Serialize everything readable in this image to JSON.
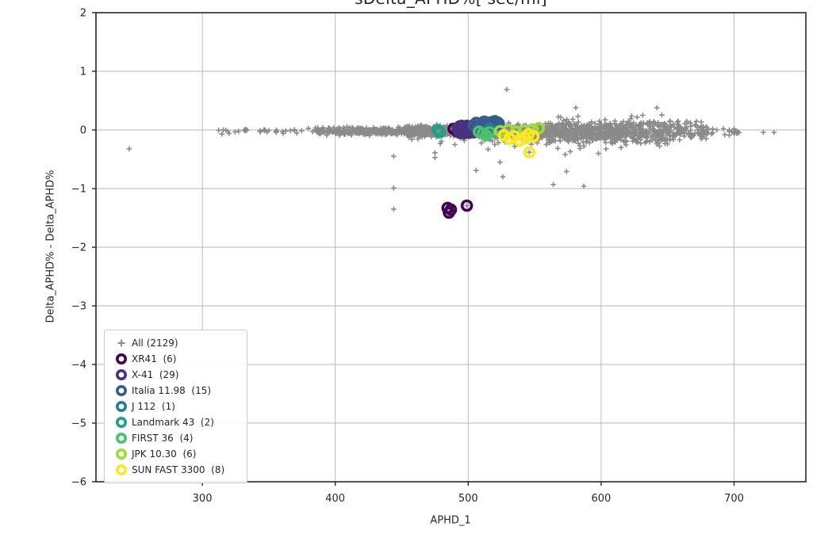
{
  "chart": {
    "title_clipped": "sDelta_APHD%[ sec/mi]",
    "xlabel": "APHD_1",
    "ylabel": "Delta_APHD% - Delta_APHD%"
  },
  "colors": {
    "frame": "#262626",
    "grid": "#b4b4b4",
    "tick_text": "#262626",
    "all_points": "#8a8a8a",
    "legend_border": "#cccccc"
  },
  "chart_data": {
    "type": "scatter",
    "title": "sDelta_APHD%[ sec/mi]",
    "xlabel": "APHD_1",
    "ylabel": "Delta_APHD% - Delta_APHD%",
    "xlim": [
      220,
      754
    ],
    "ylim": [
      -6,
      2
    ],
    "x_ticks": [
      300,
      400,
      500,
      600,
      700
    ],
    "x_tick_labels": [
      "300",
      "400",
      "500",
      "600",
      "700"
    ],
    "y_ticks": [
      2,
      1,
      0,
      -1,
      -2,
      -3,
      -4,
      -5,
      -6
    ],
    "y_tick_labels": [
      "2",
      "1",
      "0",
      "−1",
      "−2",
      "−3",
      "−4",
      "−5",
      "−6"
    ],
    "grid": true,
    "legend_position": "lower-left",
    "all_series": {
      "label": "All (2129)",
      "name": "All",
      "count": 2129,
      "marker": "plus",
      "color": "#8a8a8a",
      "band_mean_y": -0.02,
      "band_clusters": [
        {
          "x0": 312,
          "x1": 385,
          "n": 35,
          "sd": 0.022,
          "tail_frac": 0,
          "tail_sd": 0
        },
        {
          "x0": 385,
          "x1": 450,
          "n": 260,
          "sd": 0.03,
          "tail_frac": 0.02,
          "tail_sd": 0.06
        },
        {
          "x0": 450,
          "x1": 510,
          "n": 520,
          "sd": 0.042,
          "tail_frac": 0.03,
          "tail_sd": 0.08
        },
        {
          "x0": 510,
          "x1": 560,
          "n": 520,
          "sd": 0.05,
          "tail_frac": 0.1,
          "tail_sd": 0.09
        },
        {
          "x0": 560,
          "x1": 615,
          "n": 440,
          "sd": 0.085,
          "tail_frac": 0.12,
          "tail_sd": 0.12
        },
        {
          "x0": 615,
          "x1": 650,
          "n": 200,
          "sd": 0.095,
          "tail_frac": 0.08,
          "tail_sd": 0.1
        },
        {
          "x0": 650,
          "x1": 680,
          "n": 105,
          "sd": 0.085,
          "tail_frac": 0.04,
          "tail_sd": 0.08
        },
        {
          "x0": 680,
          "x1": 706,
          "n": 17,
          "sd": 0.04,
          "tail_frac": 0,
          "tail_sd": 0
        }
      ],
      "outliers": [
        [
          245,
          -0.32
        ],
        [
          444,
          -0.45
        ],
        [
          444,
          -0.99
        ],
        [
          444,
          -1.35
        ],
        [
          475,
          -0.39
        ],
        [
          475,
          -0.47
        ],
        [
          486,
          -1.35
        ],
        [
          490,
          -0.25
        ],
        [
          497,
          -0.18
        ],
        [
          499,
          -1.29
        ],
        [
          506,
          -0.69
        ],
        [
          510,
          -0.22
        ],
        [
          515,
          -0.33
        ],
        [
          520,
          -0.25
        ],
        [
          524,
          -0.55
        ],
        [
          526,
          -0.8
        ],
        [
          529,
          0.69
        ],
        [
          535,
          -0.28
        ],
        [
          546,
          -0.38
        ],
        [
          552,
          -0.22
        ],
        [
          564,
          -0.93
        ],
        [
          573,
          -0.42
        ],
        [
          574,
          -0.71
        ],
        [
          581,
          0.38
        ],
        [
          587,
          -0.96
        ],
        [
          598,
          -0.4
        ],
        [
          615,
          -0.3
        ],
        [
          642,
          0.38
        ],
        [
          687,
          0.0
        ],
        [
          693,
          -0.08
        ],
        [
          700,
          0.02
        ],
        [
          722,
          -0.04
        ],
        [
          730,
          -0.04
        ]
      ]
    },
    "series": [
      {
        "label": "XR41  (6)",
        "name": "XR41",
        "count": 6,
        "color": "#440154",
        "marker": "ring",
        "points": [
          [
            489,
            0.02
          ],
          [
            492,
            -0.03
          ],
          [
            484.5,
            -1.33
          ],
          [
            485.5,
            -1.41
          ],
          [
            487,
            -1.36
          ],
          [
            499,
            -1.29
          ]
        ]
      },
      {
        "label": "X-41  (29)",
        "name": "X-41",
        "count": 29,
        "color": "#46327e",
        "marker": "ring",
        "points": [
          [
            492,
            0.03
          ],
          [
            493,
            -0.02
          ],
          [
            493.5,
            0.06
          ],
          [
            494,
            -0.05
          ],
          [
            494.5,
            0.02
          ],
          [
            495,
            0.07
          ],
          [
            495.5,
            -0.03
          ],
          [
            496,
            0.03
          ],
          [
            496.5,
            -0.06
          ],
          [
            497,
            0.0
          ],
          [
            497.5,
            0.05
          ],
          [
            498,
            -0.04
          ],
          [
            498.5,
            0.02
          ],
          [
            499,
            0.07
          ],
          [
            499.5,
            -0.01
          ],
          [
            500,
            0.04
          ],
          [
            500.5,
            -0.05
          ],
          [
            501,
            0.01
          ],
          [
            501.5,
            0.06
          ],
          [
            502,
            -0.03
          ],
          [
            502.5,
            0.03
          ],
          [
            503,
            -0.01
          ],
          [
            503.5,
            0.05
          ],
          [
            504,
            -0.04
          ],
          [
            504.5,
            0.02
          ],
          [
            505,
            -0.02
          ],
          [
            505.5,
            0.04
          ],
          [
            506.5,
            0.0
          ],
          [
            507.5,
            -0.03
          ]
        ]
      },
      {
        "label": "Italia 11.98  (15)",
        "name": "Italia 11.98",
        "count": 15,
        "color": "#365c8d",
        "marker": "ring",
        "points": [
          [
            504,
            0.08
          ],
          [
            506,
            0.12
          ],
          [
            508,
            0.05
          ],
          [
            510,
            0.1
          ],
          [
            512,
            0.14
          ],
          [
            513,
            0.07
          ],
          [
            515,
            0.11
          ],
          [
            516,
            0.04
          ],
          [
            517,
            0.13
          ],
          [
            518,
            0.08
          ],
          [
            519,
            0.12
          ],
          [
            520,
            0.15
          ],
          [
            521,
            0.09
          ],
          [
            522,
            0.13
          ],
          [
            523,
            0.11
          ]
        ]
      },
      {
        "label": "J 112  (1)",
        "name": "J 112",
        "count": 1,
        "color": "#277f8e",
        "marker": "ring",
        "points": [
          [
            516,
            0.02
          ]
        ]
      },
      {
        "label": "Landmark 43  (2)",
        "name": "Landmark 43",
        "count": 2,
        "color": "#1fa187",
        "marker": "ring",
        "points": [
          [
            477,
            0.0
          ],
          [
            478.5,
            -0.04
          ]
        ]
      },
      {
        "label": "FIRST 36  (4)",
        "name": "FIRST 36",
        "count": 4,
        "color": "#4ac16d",
        "marker": "ring",
        "points": [
          [
            508,
            -0.03
          ],
          [
            511,
            -0.06
          ],
          [
            513.5,
            -0.09
          ],
          [
            516,
            -0.04
          ]
        ]
      },
      {
        "label": "JPK 10.30  (6)",
        "name": "JPK 10.30",
        "count": 6,
        "color": "#a0da39",
        "marker": "ring",
        "points": [
          [
            524,
            -0.02
          ],
          [
            530,
            0.0
          ],
          [
            536,
            -0.03
          ],
          [
            542,
            -0.01
          ],
          [
            548.5,
            0.01
          ],
          [
            553,
            0.03
          ]
        ]
      },
      {
        "label": "SUN FAST 3300  (8)",
        "name": "SUN FAST 3300",
        "count": 8,
        "color": "#fde725",
        "marker": "ring",
        "points": [
          [
            527,
            -0.09
          ],
          [
            531,
            -0.15
          ],
          [
            534.5,
            -0.11
          ],
          [
            538.5,
            -0.18
          ],
          [
            542.5,
            -0.13
          ],
          [
            545.5,
            -0.07
          ],
          [
            549,
            -0.11
          ],
          [
            546,
            -0.38
          ]
        ]
      }
    ]
  }
}
